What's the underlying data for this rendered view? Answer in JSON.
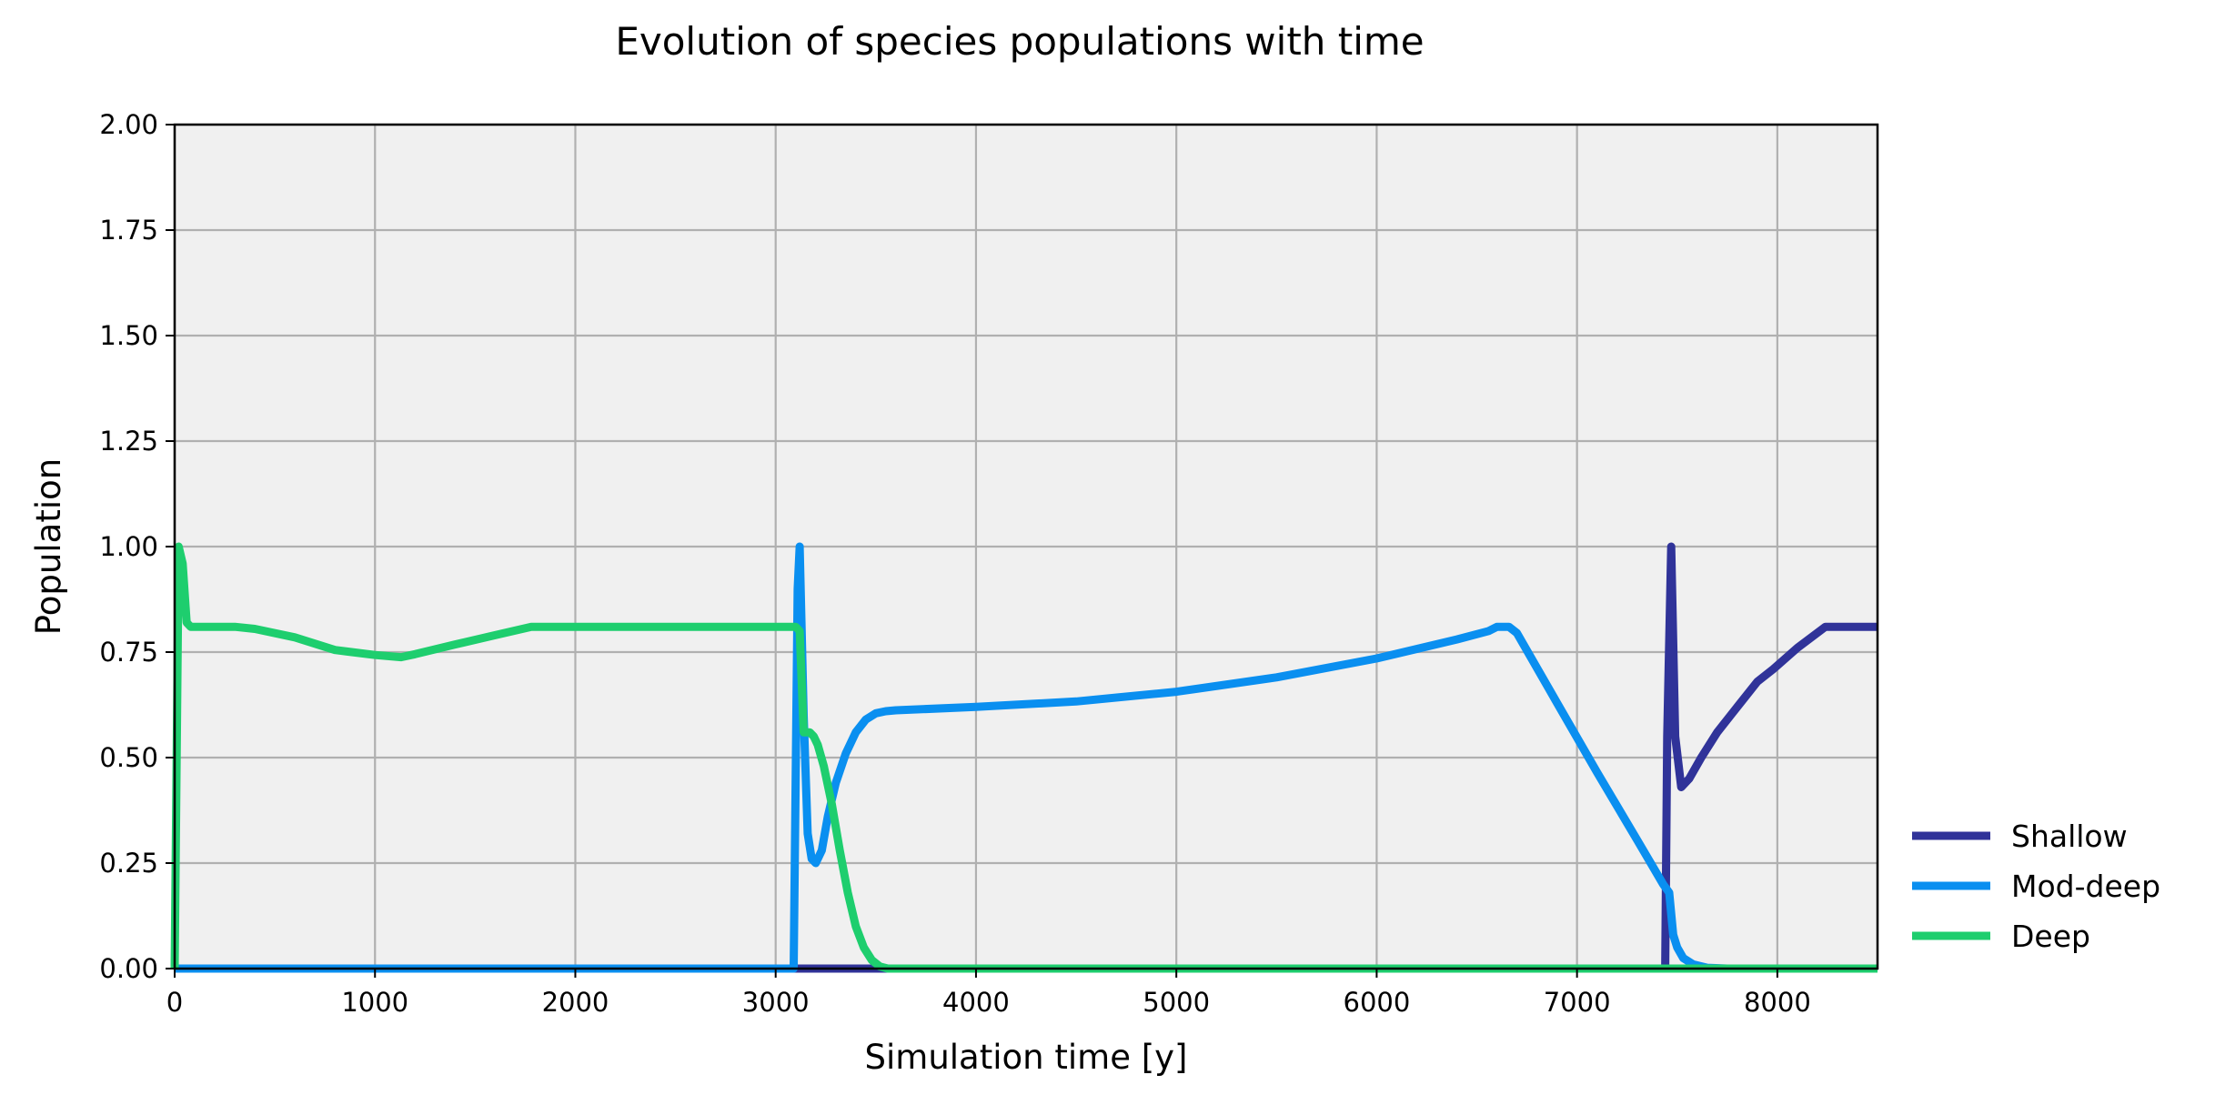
{
  "chart_data": {
    "type": "line",
    "title": "Evolution of species populations with time",
    "xlabel": "Simulation time [y]",
    "ylabel": "Population",
    "xlim": [
      0,
      8500
    ],
    "ylim": [
      0,
      2.0
    ],
    "xticks": [
      0,
      1000,
      2000,
      3000,
      4000,
      5000,
      6000,
      7000,
      8000
    ],
    "xtick_labels": [
      "0",
      "1000",
      "2000",
      "3000",
      "4000",
      "5000",
      "6000",
      "7000",
      "8000"
    ],
    "yticks": [
      0,
      0.25,
      0.5,
      0.75,
      1.0,
      1.25,
      1.5,
      1.75,
      2.0
    ],
    "ytick_labels": [
      "0.00",
      "0.25",
      "0.50",
      "0.75",
      "1.00",
      "1.25",
      "1.50",
      "1.75",
      "2.00"
    ],
    "grid": true,
    "background": "#f0f0f0",
    "legend_position": "outside-bottom-right",
    "series": [
      {
        "name": "Shallow",
        "color": "#303399",
        "x": [
          0,
          3500,
          7440,
          7450,
          7470,
          7490,
          7520,
          7560,
          7620,
          7700,
          7800,
          7900,
          7980,
          8100,
          8240,
          8500
        ],
        "y": [
          0,
          0,
          0,
          0.55,
          1.0,
          0.55,
          0.43,
          0.45,
          0.5,
          0.56,
          0.62,
          0.68,
          0.71,
          0.76,
          0.81,
          0.81
        ]
      },
      {
        "name": "Mod-deep",
        "color": "#0a8ff0",
        "x": [
          0,
          3090,
          3110,
          3120,
          3140,
          3160,
          3180,
          3200,
          3230,
          3260,
          3300,
          3350,
          3400,
          3450,
          3500,
          3550,
          3600,
          4000,
          4500,
          5000,
          5500,
          6000,
          6400,
          6560,
          6600,
          6660,
          6700,
          6900,
          7100,
          7300,
          7430,
          7460,
          7480,
          7500,
          7530,
          7580,
          7650,
          7750,
          7800,
          8500
        ],
        "y": [
          0,
          0,
          0.9,
          1.0,
          0.6,
          0.32,
          0.26,
          0.25,
          0.28,
          0.36,
          0.44,
          0.51,
          0.56,
          0.59,
          0.605,
          0.61,
          0.612,
          0.62,
          0.633,
          0.656,
          0.69,
          0.735,
          0.78,
          0.8,
          0.81,
          0.81,
          0.795,
          0.63,
          0.465,
          0.305,
          0.2,
          0.18,
          0.08,
          0.05,
          0.025,
          0.01,
          0.002,
          0,
          0,
          0
        ]
      },
      {
        "name": "Deep",
        "color": "#1ece6e",
        "x": [
          0,
          20,
          40,
          60,
          80,
          100,
          300,
          400,
          600,
          800,
          1000,
          1130,
          1200,
          1400,
          1600,
          1780,
          2000,
          2500,
          3000,
          3100,
          3120,
          3140,
          3170,
          3190,
          3210,
          3240,
          3280,
          3320,
          3360,
          3400,
          3440,
          3480,
          3520,
          3560,
          3600,
          4000,
          8500
        ],
        "y": [
          0,
          1.0,
          0.96,
          0.82,
          0.81,
          0.81,
          0.81,
          0.805,
          0.785,
          0.755,
          0.743,
          0.738,
          0.745,
          0.768,
          0.79,
          0.81,
          0.81,
          0.81,
          0.81,
          0.81,
          0.8,
          0.56,
          0.56,
          0.55,
          0.53,
          0.48,
          0.39,
          0.28,
          0.18,
          0.1,
          0.05,
          0.02,
          0.005,
          0,
          0,
          0,
          0
        ]
      }
    ]
  }
}
